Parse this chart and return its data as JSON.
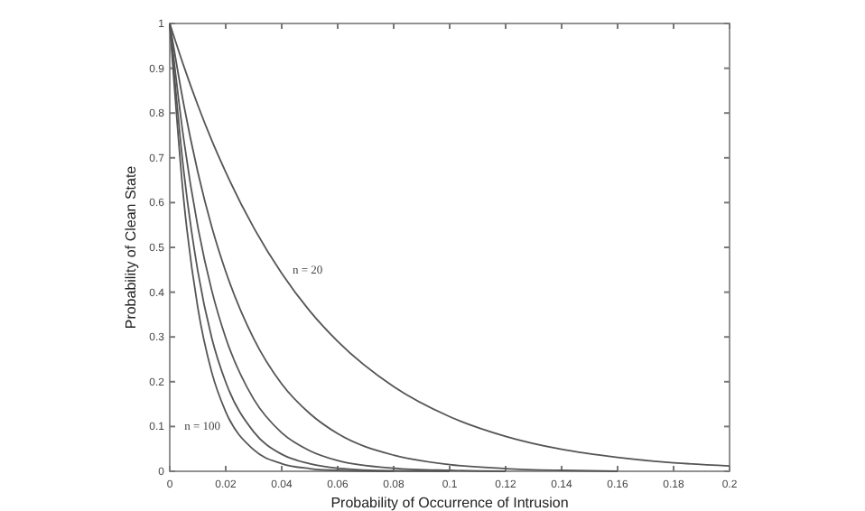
{
  "chart_data": {
    "type": "line",
    "xlabel": "Probability of Occurrence of Intrusion",
    "ylabel": "Probability of Clean State",
    "x": [
      0,
      0.005,
      0.01,
      0.015,
      0.02,
      0.03,
      0.04,
      0.05,
      0.06,
      0.08,
      0.1,
      0.12,
      0.14,
      0.16,
      0.18,
      0.2
    ],
    "series": [
      {
        "color": "#555555",
        "values": [
          1,
          0.905,
          0.818,
          0.739,
          0.668,
          0.544,
          0.442,
          0.358,
          0.29,
          0.189,
          0.122,
          0.078,
          0.049,
          0.031,
          0.019,
          0.012
        ]
      },
      {
        "color": "#555555",
        "x": [
          0,
          0.005,
          0.01,
          0.015,
          0.02,
          0.03,
          0.04,
          0.05,
          0.06,
          0.08,
          0.1,
          0.12,
          0.14,
          0.16
        ],
        "values": [
          1,
          0.819,
          0.669,
          0.546,
          0.446,
          0.296,
          0.195,
          0.129,
          0.084,
          0.036,
          0.015,
          0.006,
          0.002,
          0
        ]
      },
      {
        "color": "#555555",
        "x": [
          0,
          0.005,
          0.01,
          0.015,
          0.02,
          0.03,
          0.04,
          0.05,
          0.06,
          0.08,
          0.1,
          0.12
        ],
        "values": [
          1,
          0.741,
          0.547,
          0.404,
          0.298,
          0.161,
          0.086,
          0.046,
          0.024,
          0.007,
          0.002,
          0
        ]
      },
      {
        "color": "#555555",
        "x": [
          0,
          0.005,
          0.01,
          0.015,
          0.02,
          0.03,
          0.04,
          0.05,
          0.06,
          0.08,
          0.1
        ],
        "values": [
          1,
          0.67,
          0.448,
          0.298,
          0.199,
          0.088,
          0.038,
          0.017,
          0.007,
          0.001,
          0
        ]
      },
      {
        "color": "#555555",
        "x": [
          0,
          0.005,
          0.01,
          0.015,
          0.02,
          0.03,
          0.04,
          0.05,
          0.06,
          0.08
        ],
        "values": [
          1,
          0.606,
          0.366,
          0.221,
          0.133,
          0.048,
          0.017,
          0.006,
          0.002,
          0
        ]
      }
    ],
    "xlim": [
      0,
      0.2
    ],
    "xticks": [
      0,
      0.02,
      0.04,
      0.06,
      0.08,
      0.1,
      0.12,
      0.14,
      0.16,
      0.18,
      0.2
    ],
    "ylim": [
      0,
      1
    ],
    "yticks": [
      0,
      0.1,
      0.2,
      0.3,
      0.4,
      0.5,
      0.6,
      0.7,
      0.8,
      0.9,
      1
    ],
    "annotations": [
      {
        "text": "n = 20",
        "x": 0.04,
        "y": 0.442
      },
      {
        "text": "n = 100",
        "x": 0.02,
        "y": 0.133
      }
    ],
    "grid": false,
    "marker": "none",
    "line_style": "solid"
  }
}
